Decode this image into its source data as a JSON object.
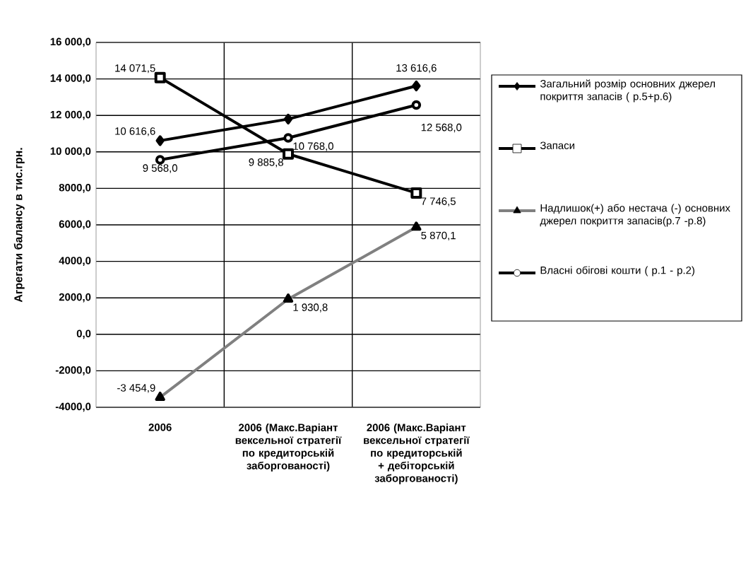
{
  "chart_data": {
    "type": "line",
    "ylabel": "Агрегати балансу в тис.грн.",
    "categories": [
      "2006",
      "2006 (Макс.Варіант вексельної стратегії по кредиторській заборгованості)",
      "2006 (Макс.Варіант вексельної стратегії по кредиторській + дебіторській заборгованості)"
    ],
    "series": [
      {
        "name": "Загальний розмір основних джерел покриття запасів ( р.5+р.6)",
        "color": "#000000",
        "marker": "diamond",
        "values": [
          10616.6,
          11800,
          13616.6
        ],
        "value_labels": [
          "10 616,6",
          null,
          "13 616,6"
        ]
      },
      {
        "name": "Запаси",
        "color": "#000000",
        "marker": "square",
        "values": [
          14071.5,
          9885.8,
          7746.5
        ],
        "value_labels": [
          "14 071,5",
          "9 885,8",
          "7 746,5"
        ]
      },
      {
        "name": "Надлишок(+) або нестача (-) основних джерел покриття запасів(р.7 -р.8)",
        "color": "#808080",
        "marker": "triangle",
        "values": [
          -3454.9,
          1930.8,
          5870.1
        ],
        "value_labels": [
          "-3 454,9",
          "1 930,8",
          "5 870,1"
        ]
      },
      {
        "name": "Власні обігові кошти ( р.1 - р.2)",
        "color": "#000000",
        "marker": "circle",
        "values": [
          9568.0,
          10768.0,
          12568.0
        ],
        "value_labels": [
          "9 568,0",
          "10 768,0",
          "12 568,0"
        ]
      }
    ],
    "ylim": [
      -4000,
      16000
    ],
    "yticks": [
      {
        "value": -4000,
        "label": "-4000,0"
      },
      {
        "value": -2000,
        "label": "-2000,0"
      },
      {
        "value": 0,
        "label": "0,0"
      },
      {
        "value": 2000,
        "label": "2000,0"
      },
      {
        "value": 4000,
        "label": "4000,0"
      },
      {
        "value": 6000,
        "label": "6000,0"
      },
      {
        "value": 8000,
        "label": "8000,0"
      },
      {
        "value": 10000,
        "label": "10 000,0"
      },
      {
        "value": 12000,
        "label": "12 000,0"
      },
      {
        "value": 14000,
        "label": "14 000,0"
      },
      {
        "value": 16000,
        "label": "16 000,0"
      }
    ],
    "grid": true,
    "legend": "right"
  }
}
